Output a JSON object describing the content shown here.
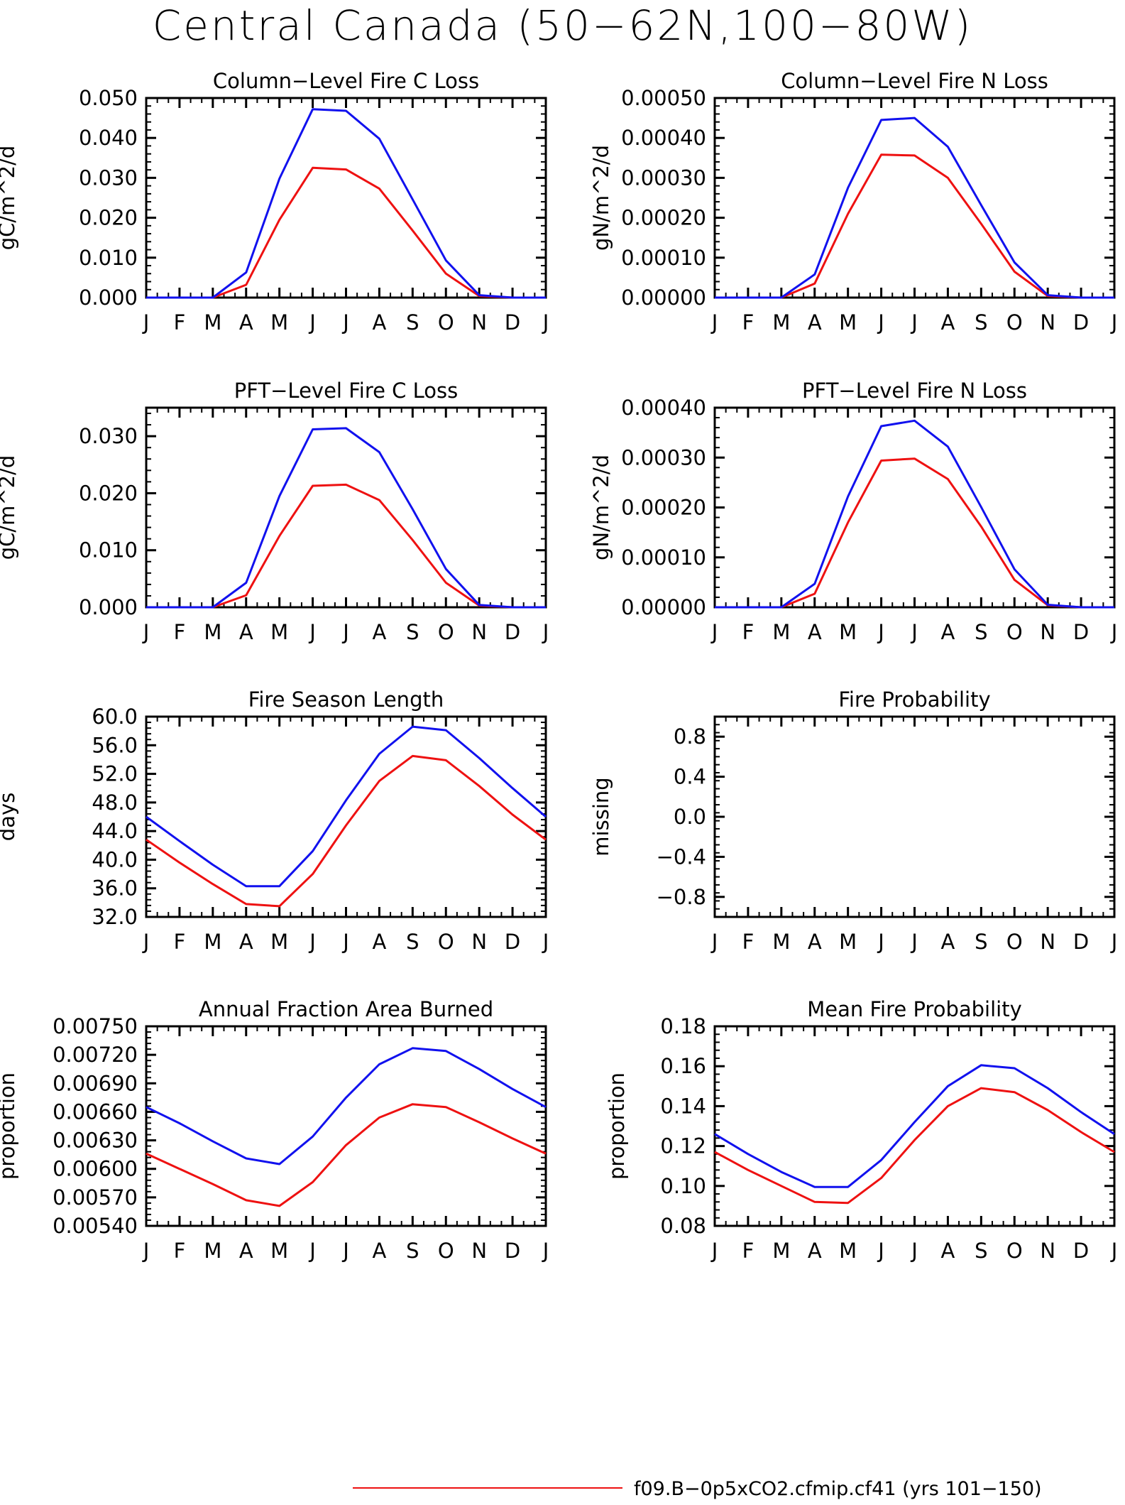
{
  "title": "Central Canada (50−62N,100−80W)",
  "colors": {
    "series1": "#ee1111",
    "series2": "#1111ee",
    "axis": "#000000"
  },
  "legend": {
    "entries": [
      {
        "label": "f09.B−0p5xCO2.cfmip.cf41 (yrs 101−150)",
        "color": "#ee1111"
      }
    ]
  },
  "chart_data": [
    {
      "type": "line",
      "title": "Column−Level Fire C Loss",
      "ylabel": "gC/m^2/d",
      "xlabel": "",
      "categories": [
        "J",
        "F",
        "M",
        "A",
        "M",
        "J",
        "J",
        "A",
        "S",
        "O",
        "N",
        "D",
        "J"
      ],
      "ylim": [
        0,
        0.05
      ],
      "yticks": [
        0,
        0.01,
        0.02,
        0.03,
        0.04,
        0.05
      ],
      "ytick_labels": [
        "0.000",
        "0.010",
        "0.020",
        "0.030",
        "0.040",
        "0.050"
      ],
      "grid": false,
      "series": [
        {
          "color": "#ee1111",
          "values": [
            0,
            0,
            0,
            0.0032,
            0.0195,
            0.0325,
            0.0321,
            0.0273,
            0.0168,
            0.006,
            0.0004,
            0,
            0
          ]
        },
        {
          "color": "#1111ee",
          "values": [
            0,
            0,
            0,
            0.0063,
            0.0298,
            0.0472,
            0.0468,
            0.0398,
            0.0246,
            0.0093,
            0.0006,
            0,
            0
          ]
        }
      ]
    },
    {
      "type": "line",
      "title": "Column−Level Fire N Loss",
      "ylabel": "gN/m^2/d",
      "xlabel": "",
      "categories": [
        "J",
        "F",
        "M",
        "A",
        "M",
        "J",
        "J",
        "A",
        "S",
        "O",
        "N",
        "D",
        "J"
      ],
      "ylim": [
        0,
        0.0005
      ],
      "yticks": [
        0,
        0.0001,
        0.0002,
        0.0003,
        0.0004,
        0.0005
      ],
      "ytick_labels": [
        "0.00000",
        "0.00010",
        "0.00020",
        "0.00030",
        "0.00040",
        "0.00050"
      ],
      "grid": false,
      "series": [
        {
          "color": "#ee1111",
          "values": [
            0,
            0,
            0,
            3.5e-05,
            0.00021,
            0.000358,
            0.000356,
            0.0003,
            0.000185,
            6.5e-05,
            4e-06,
            0,
            0
          ]
        },
        {
          "color": "#1111ee",
          "values": [
            0,
            0,
            0,
            5.8e-05,
            0.000275,
            0.000445,
            0.00045,
            0.000378,
            0.000232,
            8.8e-05,
            6e-06,
            0,
            0
          ]
        }
      ]
    },
    {
      "type": "line",
      "title": "PFT−Level Fire C Loss",
      "ylabel": "gC/m^2/d",
      "xlabel": "",
      "categories": [
        "J",
        "F",
        "M",
        "A",
        "M",
        "J",
        "J",
        "A",
        "S",
        "O",
        "N",
        "D",
        "J"
      ],
      "ylim": [
        0,
        0.035
      ],
      "yticks": [
        0,
        0.01,
        0.02,
        0.03
      ],
      "ytick_labels": [
        "0.000",
        "0.010",
        "0.020",
        "0.030"
      ],
      "grid": false,
      "series": [
        {
          "color": "#ee1111",
          "values": [
            0,
            0,
            0,
            0.0021,
            0.0125,
            0.0213,
            0.0215,
            0.0188,
            0.0118,
            0.0043,
            0.0003,
            0,
            0
          ]
        },
        {
          "color": "#1111ee",
          "values": [
            0,
            0,
            0,
            0.0043,
            0.0195,
            0.0312,
            0.0314,
            0.0272,
            0.0172,
            0.0067,
            0.0004,
            0,
            0
          ]
        }
      ]
    },
    {
      "type": "line",
      "title": "PFT−Level Fire N Loss",
      "ylabel": "gN/m^2/d",
      "xlabel": "",
      "categories": [
        "J",
        "F",
        "M",
        "A",
        "M",
        "J",
        "J",
        "A",
        "S",
        "O",
        "N",
        "D",
        "J"
      ],
      "ylim": [
        0,
        0.0004
      ],
      "yticks": [
        0,
        0.0001,
        0.0002,
        0.0003,
        0.0004
      ],
      "ytick_labels": [
        "0.00000",
        "0.00010",
        "0.00020",
        "0.00030",
        "0.00040"
      ],
      "grid": false,
      "series": [
        {
          "color": "#ee1111",
          "values": [
            0,
            0,
            0,
            2.7e-05,
            0.00017,
            0.000294,
            0.000298,
            0.000257,
            0.000162,
            5.5e-05,
            4e-06,
            0,
            0
          ]
        },
        {
          "color": "#1111ee",
          "values": [
            0,
            0,
            0,
            4.7e-05,
            0.000222,
            0.000363,
            0.000374,
            0.000322,
            0.000201,
            7.6e-05,
            5e-06,
            0,
            0
          ]
        }
      ]
    },
    {
      "type": "line",
      "title": "Fire Season Length",
      "ylabel": "days",
      "xlabel": "",
      "categories": [
        "J",
        "F",
        "M",
        "A",
        "M",
        "J",
        "J",
        "A",
        "S",
        "O",
        "N",
        "D",
        "J"
      ],
      "ylim": [
        32,
        60
      ],
      "yticks": [
        32,
        36,
        40,
        44,
        48,
        52,
        56,
        60
      ],
      "ytick_labels": [
        "32.0",
        "36.0",
        "40.0",
        "44.0",
        "48.0",
        "52.0",
        "56.0",
        "60.0"
      ],
      "grid": false,
      "series": [
        {
          "color": "#ee1111",
          "values": [
            42.8,
            39.6,
            36.6,
            33.8,
            33.5,
            38.0,
            44.8,
            51.0,
            54.5,
            53.9,
            50.3,
            46.3,
            42.8
          ]
        },
        {
          "color": "#1111ee",
          "values": [
            46.0,
            42.6,
            39.3,
            36.3,
            36.3,
            41.2,
            48.3,
            54.8,
            58.6,
            58.1,
            54.2,
            50.0,
            46.0
          ]
        }
      ]
    },
    {
      "type": "line",
      "title": "Fire Probability",
      "ylabel": "missing",
      "xlabel": "",
      "categories": [
        "J",
        "F",
        "M",
        "A",
        "M",
        "J",
        "J",
        "A",
        "S",
        "O",
        "N",
        "D",
        "J"
      ],
      "ylim": [
        -1,
        1
      ],
      "yticks": [
        -0.8,
        -0.4,
        0,
        0.4,
        0.8
      ],
      "ytick_labels": [
        "−0.8",
        "−0.4",
        "0.0",
        "0.4",
        "0.8"
      ],
      "grid": false,
      "series": []
    },
    {
      "type": "line",
      "title": "Annual Fraction Area Burned",
      "ylabel": "proportion",
      "xlabel": "",
      "categories": [
        "J",
        "F",
        "M",
        "A",
        "M",
        "J",
        "J",
        "A",
        "S",
        "O",
        "N",
        "D",
        "J"
      ],
      "ylim": [
        0.0054,
        0.0075
      ],
      "yticks": [
        0.0054,
        0.0057,
        0.006,
        0.0063,
        0.0066,
        0.0069,
        0.0072,
        0.0075
      ],
      "ytick_labels": [
        "0.00540",
        "0.00570",
        "0.00600",
        "0.00630",
        "0.00660",
        "0.00690",
        "0.00720",
        "0.00750"
      ],
      "grid": false,
      "series": [
        {
          "color": "#ee1111",
          "values": [
            0.00616,
            0.006,
            0.00584,
            0.00567,
            0.00561,
            0.00586,
            0.00625,
            0.00654,
            0.00668,
            0.00665,
            0.00649,
            0.00632,
            0.00616
          ]
        },
        {
          "color": "#1111ee",
          "values": [
            0.00665,
            0.00648,
            0.00629,
            0.00611,
            0.00605,
            0.00634,
            0.00675,
            0.0071,
            0.00727,
            0.00724,
            0.00705,
            0.00684,
            0.00665
          ]
        }
      ]
    },
    {
      "type": "line",
      "title": "Mean Fire Probability",
      "ylabel": "proportion",
      "xlabel": "",
      "categories": [
        "J",
        "F",
        "M",
        "A",
        "M",
        "J",
        "J",
        "A",
        "S",
        "O",
        "N",
        "D",
        "J"
      ],
      "ylim": [
        0.08,
        0.18
      ],
      "yticks": [
        0.08,
        0.1,
        0.12,
        0.14,
        0.16,
        0.18
      ],
      "ytick_labels": [
        "0.08",
        "0.10",
        "0.12",
        "0.14",
        "0.16",
        "0.18"
      ],
      "grid": false,
      "series": [
        {
          "color": "#ee1111",
          "values": [
            0.117,
            0.108,
            0.1,
            0.092,
            0.0915,
            0.104,
            0.123,
            0.14,
            0.149,
            0.147,
            0.138,
            0.127,
            0.117
          ]
        },
        {
          "color": "#1111ee",
          "values": [
            0.126,
            0.116,
            0.107,
            0.0995,
            0.0995,
            0.113,
            0.132,
            0.15,
            0.1605,
            0.159,
            0.149,
            0.137,
            0.126
          ]
        }
      ]
    }
  ]
}
